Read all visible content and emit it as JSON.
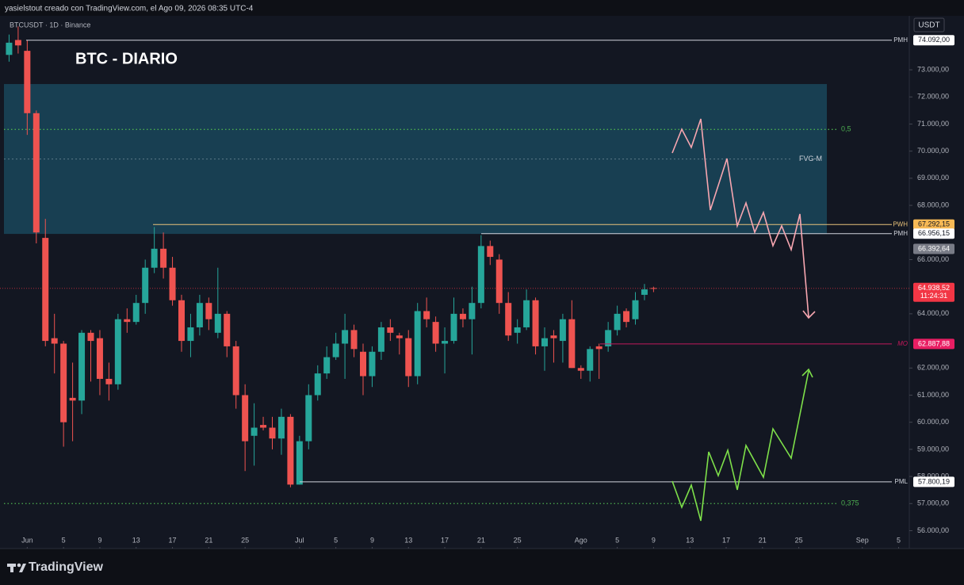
{
  "header": {
    "credit": "yasielstout creado con TradingView.com, el Ago 09, 2026 08:35 UTC-4",
    "symbol": "BTCUSDT · 1D · Binance",
    "currency": "USDT",
    "brand": "TradingView"
  },
  "chart_data": {
    "type": "candlestick",
    "title": "BTC - DIARIO",
    "up_color": "#26a69a",
    "down_color": "#ef5350",
    "x": [
      "2026-05-30",
      "2026-05-31",
      "2026-06-01",
      "2026-06-02",
      "2026-06-03",
      "2026-06-04",
      "2026-06-05",
      "2026-06-06",
      "2026-06-07",
      "2026-06-08",
      "2026-06-09",
      "2026-06-10",
      "2026-06-11",
      "2026-06-12",
      "2026-06-13",
      "2026-06-14",
      "2026-06-15",
      "2026-06-16",
      "2026-06-17",
      "2026-06-18",
      "2026-06-19",
      "2026-06-20",
      "2026-06-21",
      "2026-06-22",
      "2026-06-23",
      "2026-06-24",
      "2026-06-25",
      "2026-06-26",
      "2026-06-27",
      "2026-06-28",
      "2026-06-29",
      "2026-06-30",
      "2026-07-01",
      "2026-07-02",
      "2026-07-03",
      "2026-07-04",
      "2026-07-05",
      "2026-07-06",
      "2026-07-07",
      "2026-07-08",
      "2026-07-09",
      "2026-07-10",
      "2026-07-11",
      "2026-07-12",
      "2026-07-13",
      "2026-07-14",
      "2026-07-15",
      "2026-07-16",
      "2026-07-17",
      "2026-07-18",
      "2026-07-19",
      "2026-07-20",
      "2026-07-21",
      "2026-07-22",
      "2026-07-23",
      "2026-07-24",
      "2026-07-25",
      "2026-07-26",
      "2026-07-27",
      "2026-07-28",
      "2026-07-29",
      "2026-07-30",
      "2026-07-31",
      "2026-08-01",
      "2026-08-02",
      "2026-08-03",
      "2026-08-04",
      "2026-08-05",
      "2026-08-06",
      "2026-08-07",
      "2026-08-08",
      "2026-08-09"
    ],
    "open": [
      73550,
      74100,
      73700,
      71400,
      66800,
      63100,
      62900,
      60900,
      60800,
      63300,
      63100,
      61600,
      61400,
      63800,
      63700,
      64400,
      65700,
      66400,
      65700,
      64500,
      63000,
      63500,
      64400,
      63300,
      64000,
      62800,
      61000,
      59500,
      59900,
      59800,
      59400,
      60200,
      57700,
      59300,
      61000,
      61800,
      62400,
      62900,
      63400,
      62600,
      61700,
      62600,
      63500,
      63200,
      63100,
      61700,
      64100,
      63700,
      62900,
      63000,
      64000,
      63800,
      64400,
      66500,
      66000,
      64400,
      63300,
      63500,
      64500,
      62800,
      63200,
      63000,
      63800,
      62000,
      61900,
      62800,
      62800,
      63400,
      64100,
      63800,
      64700,
      64950
    ],
    "high": [
      74300,
      74600,
      74100,
      71500,
      67500,
      64000,
      63000,
      62200,
      63400,
      63400,
      63400,
      62200,
      64000,
      64200,
      64700,
      66000,
      67200,
      67000,
      66100,
      64700,
      64000,
      64700,
      64600,
      65700,
      64100,
      63000,
      61400,
      60700,
      60200,
      60200,
      60500,
      60300,
      59500,
      61400,
      62100,
      62800,
      63300,
      64000,
      63600,
      62900,
      62800,
      63700,
      63800,
      63300,
      63400,
      64400,
      64600,
      63900,
      63500,
      64600,
      64200,
      65000,
      66900,
      66700,
      66200,
      64800,
      63800,
      64900,
      64600,
      63500,
      63400,
      64000,
      64500,
      62100,
      62800,
      62900,
      63700,
      64300,
      64200,
      64800,
      65100,
      65000
    ],
    "low": [
      73300,
      73600,
      70600,
      66600,
      62800,
      61800,
      59100,
      59300,
      60300,
      61500,
      61000,
      60800,
      61200,
      63300,
      63600,
      64000,
      65500,
      65300,
      64300,
      62600,
      62400,
      63200,
      63400,
      63100,
      62400,
      60500,
      58200,
      58400,
      59700,
      59000,
      58800,
      57600,
      57700,
      59000,
      60800,
      61600,
      62300,
      61600,
      62400,
      61000,
      61300,
      62300,
      63000,
      62500,
      61300,
      61400,
      63500,
      62600,
      61800,
      62900,
      63500,
      62500,
      64200,
      65800,
      64000,
      63000,
      62900,
      63400,
      62500,
      61900,
      62200,
      62200,
      62000,
      61600,
      61500,
      61600,
      62600,
      63200,
      63500,
      63600,
      64500,
      64800
    ],
    "close": [
      74000,
      73900,
      71400,
      67000,
      63000,
      62900,
      60000,
      60800,
      63300,
      63000,
      61600,
      61400,
      63800,
      63700,
      64400,
      65700,
      66400,
      65700,
      64500,
      63000,
      63500,
      64400,
      63800,
      64000,
      62800,
      61000,
      59300,
      59800,
      59800,
      59400,
      60200,
      57700,
      59300,
      61000,
      61800,
      62400,
      62900,
      63400,
      62700,
      61700,
      62600,
      63500,
      63300,
      63100,
      61700,
      64100,
      63800,
      62900,
      63000,
      64000,
      63800,
      64400,
      66500,
      66100,
      64400,
      63200,
      63500,
      64500,
      62800,
      63100,
      63100,
      63800,
      62000,
      61900,
      62700,
      62700,
      63400,
      64000,
      63700,
      64500,
      64900,
      64938.52
    ],
    "xlim": [
      "2026-05-29",
      "2026-09-06"
    ],
    "xticks": [
      {
        "value": "2026-06-01",
        "label": "Jun"
      },
      {
        "value": "2026-06-05",
        "label": "5"
      },
      {
        "value": "2026-06-09",
        "label": "9"
      },
      {
        "value": "2026-06-13",
        "label": "13"
      },
      {
        "value": "2026-06-17",
        "label": "17"
      },
      {
        "value": "2026-06-21",
        "label": "21"
      },
      {
        "value": "2026-06-25",
        "label": "25"
      },
      {
        "value": "2026-07-01",
        "label": "Jul"
      },
      {
        "value": "2026-07-05",
        "label": "5"
      },
      {
        "value": "2026-07-09",
        "label": "9"
      },
      {
        "value": "2026-07-13",
        "label": "13"
      },
      {
        "value": "2026-07-17",
        "label": "17"
      },
      {
        "value": "2026-07-21",
        "label": "21"
      },
      {
        "value": "2026-07-25",
        "label": "25"
      },
      {
        "value": "2026-08-01",
        "label": "Ago"
      },
      {
        "value": "2026-08-05",
        "label": "5"
      },
      {
        "value": "2026-08-09",
        "label": "9"
      },
      {
        "value": "2026-08-13",
        "label": "13"
      },
      {
        "value": "2026-08-17",
        "label": "17"
      },
      {
        "value": "2026-08-21",
        "label": "21"
      },
      {
        "value": "2026-08-25",
        "label": "25"
      },
      {
        "value": "2026-09-01",
        "label": "Sep"
      },
      {
        "value": "2026-09-05",
        "label": "5"
      }
    ],
    "ylim": [
      55400,
      74990
    ],
    "yticks": [
      {
        "value": 56000,
        "label": "56.000,00"
      },
      {
        "value": 57000,
        "label": "57.000,00"
      },
      {
        "value": 58000,
        "label": "58.000,00"
      },
      {
        "value": 59000,
        "label": "59.000,00"
      },
      {
        "value": 60000,
        "label": "60.000,00"
      },
      {
        "value": 61000,
        "label": "61.000,00"
      },
      {
        "value": 62000,
        "label": "62.000,00"
      },
      {
        "value": 64000,
        "label": "64.000,00"
      },
      {
        "value": 66000,
        "label": "66.000,00"
      },
      {
        "value": 68000,
        "label": "68.000,00"
      },
      {
        "value": 69000,
        "label": "69.000,00"
      },
      {
        "value": 70000,
        "label": "70.000,00"
      },
      {
        "value": 71000,
        "label": "71.000,00"
      },
      {
        "value": 72000,
        "label": "72.000,00"
      },
      {
        "value": 73000,
        "label": "73.000,00"
      }
    ],
    "levels": [
      {
        "name": "PMH",
        "value": 74092,
        "label": "74.092,00",
        "color": "#d1d4dc",
        "label_bg": "#ffffff",
        "label_color": "#131722"
      },
      {
        "name": "PWH",
        "value": 67292.15,
        "label": "67.292,15",
        "color": "#e8c27a",
        "label_bg": "#f7b955",
        "label_color": "#131722"
      },
      {
        "name": "PMH",
        "value": 66956.15,
        "label": "66.956,15",
        "color": "#d1d4dc",
        "label_bg": "#ffffff",
        "label_color": "#131722"
      },
      {
        "name": "PML",
        "value": 57800.19,
        "label": "57.800,19",
        "color": "#d1d4dc",
        "label_bg": "#ffffff",
        "label_color": "#131722"
      },
      {
        "name": "MO",
        "value": 62887.88,
        "label": "62.887,88",
        "color": "#c2185b",
        "label_bg": "#e91e63",
        "label_color": "#ffffff"
      }
    ],
    "fib_levels": [
      {
        "label": "0,5",
        "value": 70800
      },
      {
        "label": "0,375",
        "value": 57000
      }
    ],
    "fib_color": "#4caf50",
    "zone": {
      "label": "FVG-M",
      "top": 72474,
      "bottom": 66947,
      "color": "#1b4d63"
    },
    "marker": {
      "value": 66392.64,
      "label": "66.392,64",
      "color": "#787b86"
    },
    "last_price": {
      "value": 64938.52,
      "label": "64.938,52",
      "countdown": "11:24:31",
      "color": "#f23645"
    }
  }
}
